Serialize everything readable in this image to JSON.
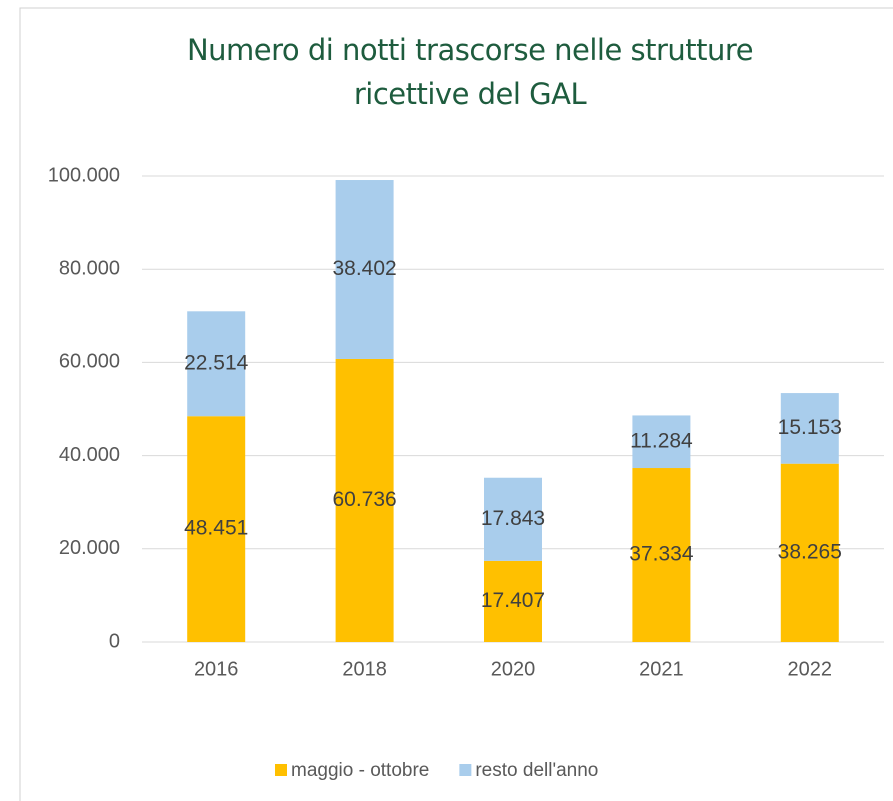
{
  "chart_data": {
    "type": "stacked_bar",
    "title": "Numero di notti trascorse nelle strutture ricettive del GAL",
    "categories": [
      "2016",
      "2018",
      "2020",
      "2021",
      "2022"
    ],
    "series": [
      {
        "name": "maggio - ottobre",
        "color": "#ffc000",
        "values": [
          48451,
          60736,
          17407,
          37334,
          38265
        ],
        "value_labels": [
          "48.451",
          "60.736",
          "17.407",
          "37.334",
          "38.265"
        ]
      },
      {
        "name": "resto dell'anno",
        "color": "#a9cdec",
        "values": [
          22514,
          38402,
          17843,
          11284,
          15153
        ],
        "value_labels": [
          "22.514",
          "38.402",
          "17.843",
          "11.284",
          "15.153"
        ]
      }
    ],
    "ylim": [
      0,
      100000
    ],
    "yticks": [
      {
        "value": 0,
        "label": "0"
      },
      {
        "value": 20000,
        "label": "20.000"
      },
      {
        "value": 40000,
        "label": "40.000"
      },
      {
        "value": 60000,
        "label": "60.000"
      },
      {
        "value": 80000,
        "label": "80.000"
      },
      {
        "value": 100000,
        "label": "100.000"
      }
    ],
    "grid": true,
    "legend": "bottom"
  }
}
